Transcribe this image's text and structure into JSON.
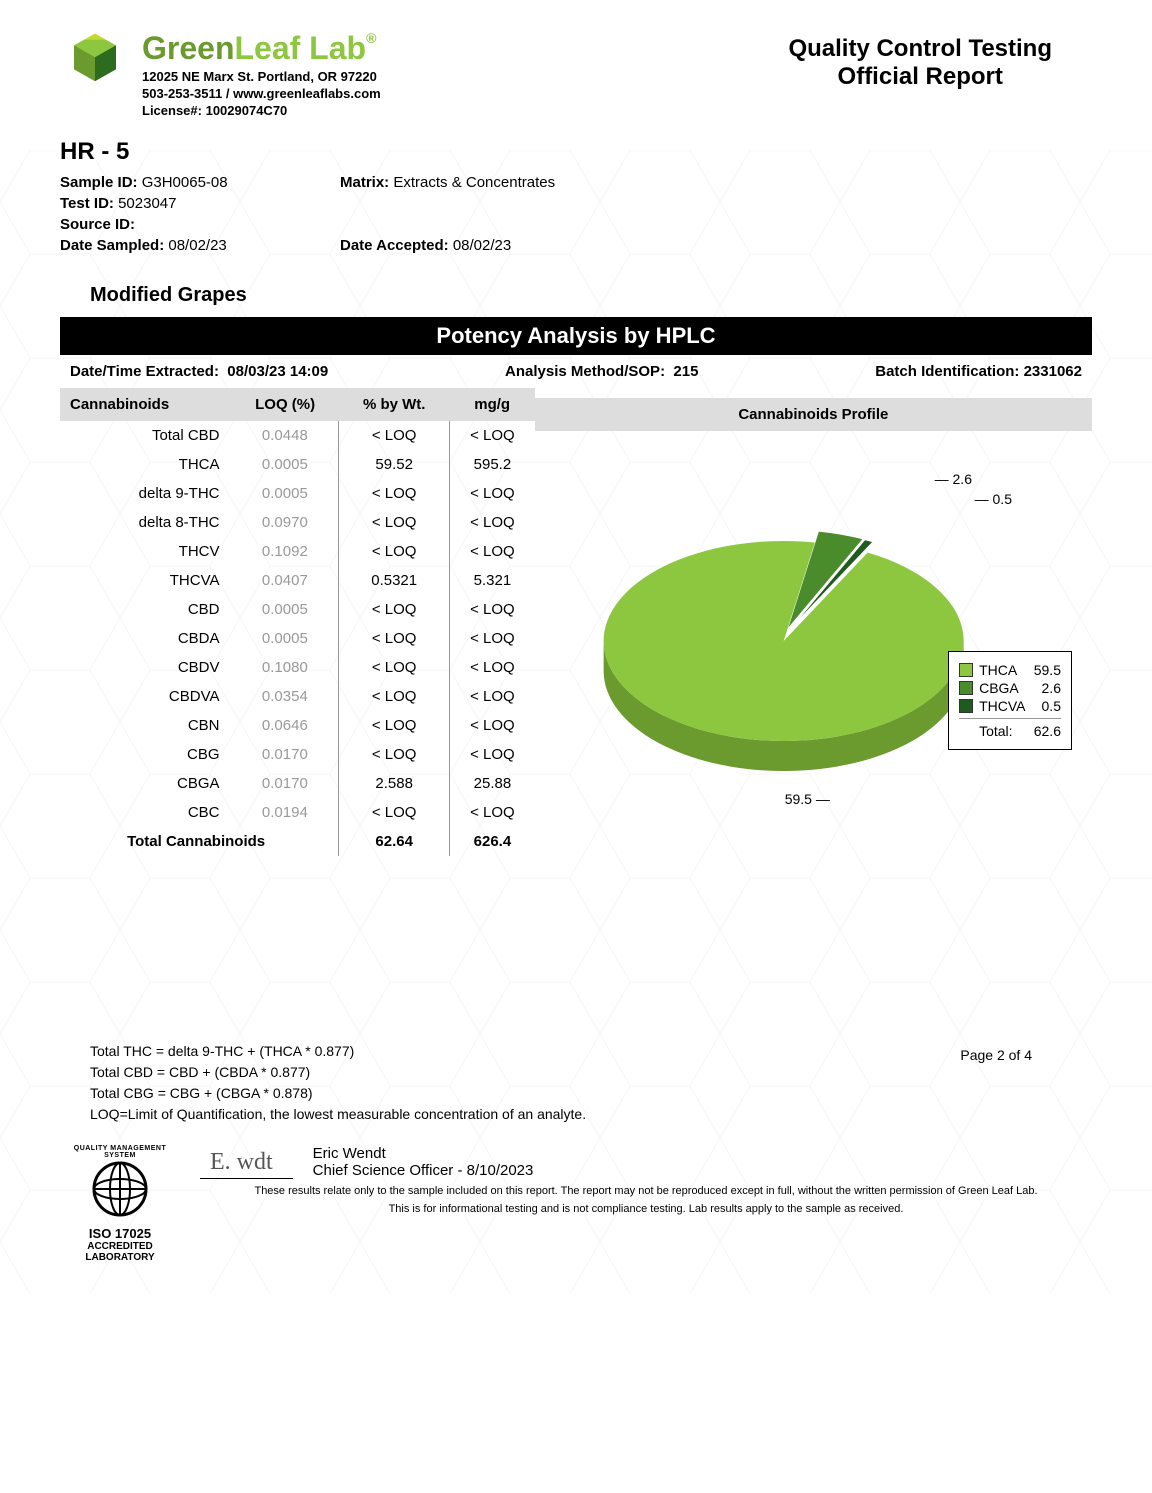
{
  "company": {
    "name_green": "Green",
    "name_leaf": "Leaf Lab",
    "address": "12025 NE Marx St. Portland, OR 97220",
    "phone_web": "503-253-3511 / www.greenleaflabs.com",
    "license": "License#: 10029074C70"
  },
  "report": {
    "title1": "Quality Control Testing",
    "title2": "Official Report"
  },
  "sample": {
    "hr": "HR - 5",
    "sample_id_label": "Sample ID:",
    "sample_id": "G3H0065-08",
    "matrix_label": "Matrix:",
    "matrix": "Extracts & Concentrates",
    "test_id_label": "Test ID:",
    "test_id": "5023047",
    "source_id_label": "Source ID:",
    "source_id": "",
    "date_sampled_label": "Date Sampled:",
    "date_sampled": "08/02/23",
    "date_accepted_label": "Date Accepted:",
    "date_accepted": "08/02/23",
    "strain": "Modified Grapes"
  },
  "section": {
    "title": "Potency Analysis by HPLC",
    "extracted_label": "Date/Time Extracted:",
    "extracted": "08/03/23  14:09",
    "method_label": "Analysis Method/SOP:",
    "method": "215",
    "batch_label": "Batch Identification:",
    "batch": "2331062"
  },
  "table": {
    "headers": {
      "c1": "Cannabinoids",
      "c2": "LOQ (%)",
      "c3": "% by Wt.",
      "c4": "mg/g"
    },
    "rows": [
      {
        "name": "Total CBD",
        "loq": "0.0448",
        "wt": "< LOQ",
        "mg": "< LOQ"
      },
      {
        "name": "THCA",
        "loq": "0.0005",
        "wt": "59.52",
        "mg": "595.2"
      },
      {
        "name": "delta 9-THC",
        "loq": "0.0005",
        "wt": "< LOQ",
        "mg": "< LOQ"
      },
      {
        "name": "delta 8-THC",
        "loq": "0.0970",
        "wt": "< LOQ",
        "mg": "< LOQ"
      },
      {
        "name": "THCV",
        "loq": "0.1092",
        "wt": "< LOQ",
        "mg": "< LOQ"
      },
      {
        "name": "THCVA",
        "loq": "0.0407",
        "wt": "0.5321",
        "mg": "5.321"
      },
      {
        "name": "CBD",
        "loq": "0.0005",
        "wt": "< LOQ",
        "mg": "< LOQ"
      },
      {
        "name": "CBDA",
        "loq": "0.0005",
        "wt": "< LOQ",
        "mg": "< LOQ"
      },
      {
        "name": "CBDV",
        "loq": "0.1080",
        "wt": "< LOQ",
        "mg": "< LOQ"
      },
      {
        "name": "CBDVA",
        "loq": "0.0354",
        "wt": "< LOQ",
        "mg": "< LOQ"
      },
      {
        "name": "CBN",
        "loq": "0.0646",
        "wt": "< LOQ",
        "mg": "< LOQ"
      },
      {
        "name": "CBG",
        "loq": "0.0170",
        "wt": "< LOQ",
        "mg": "< LOQ"
      },
      {
        "name": "CBGA",
        "loq": "0.0170",
        "wt": "2.588",
        "mg": "25.88"
      },
      {
        "name": "CBC",
        "loq": "0.0194",
        "wt": "< LOQ",
        "mg": "< LOQ"
      }
    ],
    "total": {
      "name": "Total Cannabinoids",
      "wt": "62.64",
      "mg": "626.4"
    }
  },
  "chart": {
    "title": "Cannabinoids Profile",
    "type": "pie",
    "colors": {
      "THCA": "#8dc63f",
      "CBGA": "#4a8b2c",
      "THCVA": "#1f5a1f",
      "side": "#6b9b2f"
    },
    "slices": [
      {
        "label": "THCA",
        "value": 59.5,
        "color": "#8dc63f"
      },
      {
        "label": "CBGA",
        "value": 2.6,
        "color": "#4a8b2c"
      },
      {
        "label": "THCVA",
        "value": 0.5,
        "color": "#1f5a1f"
      }
    ],
    "total_label": "Total:",
    "total": "62.6",
    "callouts": {
      "main": "59.5",
      "c2": "2.6",
      "c3": "0.5"
    }
  },
  "footnotes": {
    "l1": "Total THC =  delta 9-THC + (THCA * 0.877)",
    "l2": "Total CBD =  CBD + (CBDA * 0.877)",
    "l3": "Total CBG = CBG + (CBGA * 0.878)",
    "l4": "LOQ=Limit of Quantification, the lowest measurable concentration of an analyte."
  },
  "signoff": {
    "name": "Eric Wendt",
    "title": "Chief Science Officer - 8/10/2023",
    "iso_top": "QUALITY MANAGEMENT SYSTEM",
    "iso_mid": "ISO 17025",
    "iso_bot1": "ACCREDITED",
    "iso_bot2": "LABORATORY"
  },
  "disclaimer": {
    "l1": "These results relate only to the sample included on this report. The report may not be reproduced except in full, without the written permission of Green Leaf Lab.",
    "l2": "This is for informational testing and is not compliance testing. Lab results apply to the sample as received."
  },
  "page": "Page 2 of 4"
}
